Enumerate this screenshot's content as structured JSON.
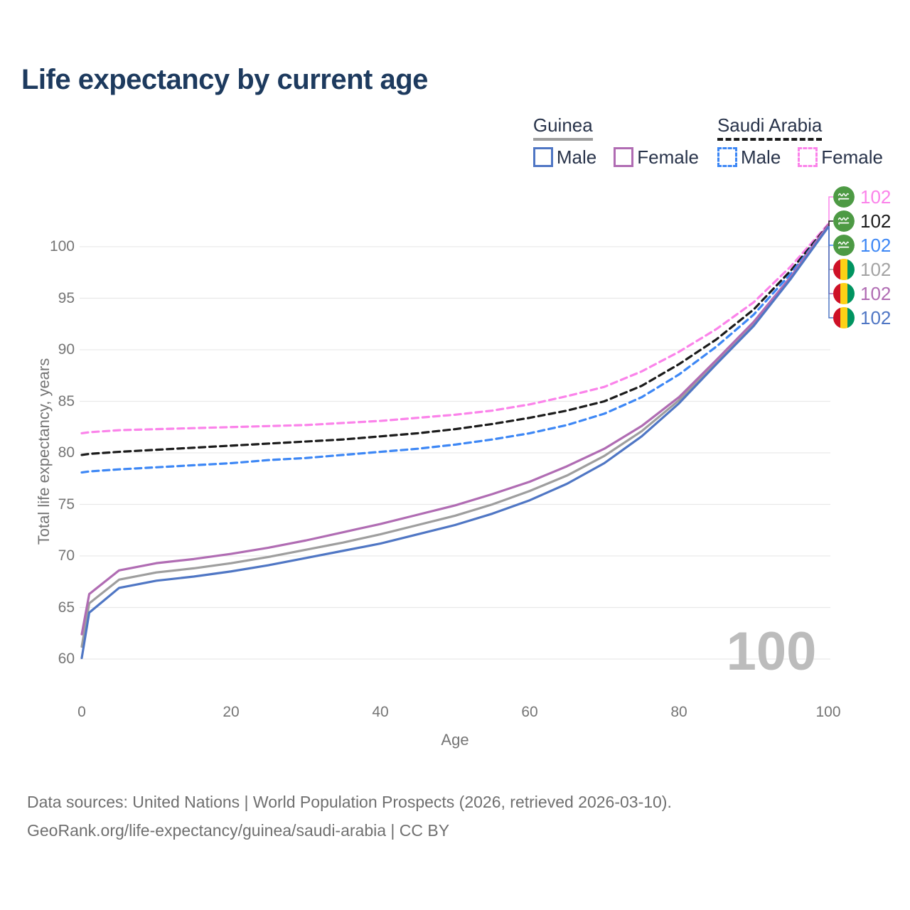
{
  "title": "Life expectancy by current age",
  "watermark": "100",
  "colors": {
    "title": "#1d3a5e",
    "axis_text": "#757575",
    "grid": "#e9e9e9",
    "watermark": "#bcbcbc",
    "footer_text": "#6f6f6f",
    "legend_text": "#28334a",
    "guinea_male": "#4f76c4",
    "guinea_female": "#b06cb3",
    "guinea_both": "#9e9e9e",
    "saudi_male": "#3d87f5",
    "saudi_female": "#fb83ea",
    "saudi_both": "#1b1b1b"
  },
  "legend": {
    "groups": [
      {
        "title": "Guinea",
        "line_style": "solid",
        "underline_color": "#9e9e9e",
        "items": [
          {
            "label": "Male",
            "color": "#4f76c4"
          },
          {
            "label": "Female",
            "color": "#b06cb3"
          }
        ]
      },
      {
        "title": "Saudi Arabia",
        "line_style": "dashed",
        "underline_color": "#1b1b1b",
        "items": [
          {
            "label": "Male",
            "color": "#3d87f5"
          },
          {
            "label": "Female",
            "color": "#fb83ea"
          }
        ]
      }
    ]
  },
  "chart_data": {
    "type": "line",
    "title": "Life expectancy by current age",
    "xlabel": "Age",
    "ylabel": "Total life expectancy, years",
    "x_ticks": [
      0,
      20,
      40,
      60,
      80,
      100
    ],
    "y_ticks": [
      60,
      65,
      70,
      75,
      80,
      85,
      90,
      95,
      100
    ],
    "xlim": [
      0,
      100
    ],
    "ylim": [
      60,
      103.5
    ],
    "grid": "horizontal-only",
    "legend_position": "top-right",
    "x": [
      0,
      1,
      5,
      10,
      15,
      20,
      25,
      30,
      35,
      40,
      45,
      50,
      55,
      60,
      65,
      70,
      75,
      80,
      85,
      90,
      95,
      100
    ],
    "series": [
      {
        "name": "Saudi Arabia Female",
        "country": "Saudi Arabia",
        "sex": "Female",
        "style": "dashed",
        "color": "#fb83ea",
        "values": [
          81.9,
          82.0,
          82.2,
          82.3,
          82.4,
          82.5,
          82.6,
          82.7,
          82.9,
          83.1,
          83.4,
          83.7,
          84.1,
          84.7,
          85.5,
          86.4,
          87.9,
          89.8,
          92.0,
          94.6,
          98.1,
          102.2
        ],
        "end_value": "102"
      },
      {
        "name": "Saudi Arabia Both sexes",
        "country": "Saudi Arabia",
        "sex": "Both",
        "style": "dashed",
        "color": "#1b1b1b",
        "values": [
          79.8,
          79.9,
          80.1,
          80.3,
          80.5,
          80.7,
          80.9,
          81.1,
          81.3,
          81.6,
          81.9,
          82.3,
          82.8,
          83.4,
          84.1,
          85.0,
          86.5,
          88.6,
          91.0,
          93.9,
          97.7,
          102.1
        ],
        "end_value": "102"
      },
      {
        "name": "Saudi Arabia Male",
        "country": "Saudi Arabia",
        "sex": "Male",
        "style": "dashed",
        "color": "#3d87f5",
        "values": [
          78.1,
          78.2,
          78.4,
          78.6,
          78.8,
          79.0,
          79.3,
          79.5,
          79.8,
          80.1,
          80.4,
          80.8,
          81.3,
          81.9,
          82.7,
          83.8,
          85.4,
          87.6,
          90.3,
          93.4,
          97.4,
          102.0
        ],
        "end_value": "102"
      },
      {
        "name": "Guinea Both sexes",
        "country": "Guinea",
        "sex": "Both",
        "style": "solid",
        "color": "#9e9e9e",
        "values": [
          61.2,
          65.4,
          67.7,
          68.4,
          68.8,
          69.3,
          69.9,
          70.6,
          71.3,
          72.1,
          73.0,
          73.9,
          75.0,
          76.3,
          77.8,
          79.7,
          82.1,
          85.1,
          88.8,
          92.5,
          97.0,
          102.0
        ],
        "end_value": "102"
      },
      {
        "name": "Guinea Female",
        "country": "Guinea",
        "sex": "Female",
        "style": "solid",
        "color": "#b06cb3",
        "values": [
          62.4,
          66.3,
          68.6,
          69.3,
          69.7,
          70.2,
          70.8,
          71.5,
          72.3,
          73.1,
          74.0,
          74.9,
          76.0,
          77.2,
          78.7,
          80.4,
          82.6,
          85.4,
          89.0,
          92.7,
          97.1,
          102.1
        ],
        "end_value": "102"
      },
      {
        "name": "Guinea Male",
        "country": "Guinea",
        "sex": "Male",
        "style": "solid",
        "color": "#4f76c4",
        "values": [
          60.1,
          64.5,
          66.9,
          67.6,
          68.0,
          68.5,
          69.1,
          69.8,
          70.5,
          71.2,
          72.1,
          73.0,
          74.1,
          75.4,
          77.0,
          79.0,
          81.6,
          84.8,
          88.6,
          92.3,
          96.9,
          101.9
        ],
        "end_value": "102"
      }
    ]
  },
  "right_labels": [
    {
      "flag": "saudi-arabia",
      "value": "102",
      "color": "#fb83ea"
    },
    {
      "flag": "saudi-arabia",
      "value": "102",
      "color": "#1b1b1b"
    },
    {
      "flag": "saudi-arabia",
      "value": "102",
      "color": "#3d87f5"
    },
    {
      "flag": "guinea",
      "value": "102",
      "color": "#a3a3a3"
    },
    {
      "flag": "guinea",
      "value": "102",
      "color": "#b06cb3"
    },
    {
      "flag": "guinea",
      "value": "102",
      "color": "#4f76c4"
    }
  ],
  "footer": {
    "line1": "Data sources: United Nations | World Population Prospects (2026, retrieved 2026-03-10).",
    "line2": "GeoRank.org/life-expectancy/guinea/saudi-arabia | CC BY"
  }
}
